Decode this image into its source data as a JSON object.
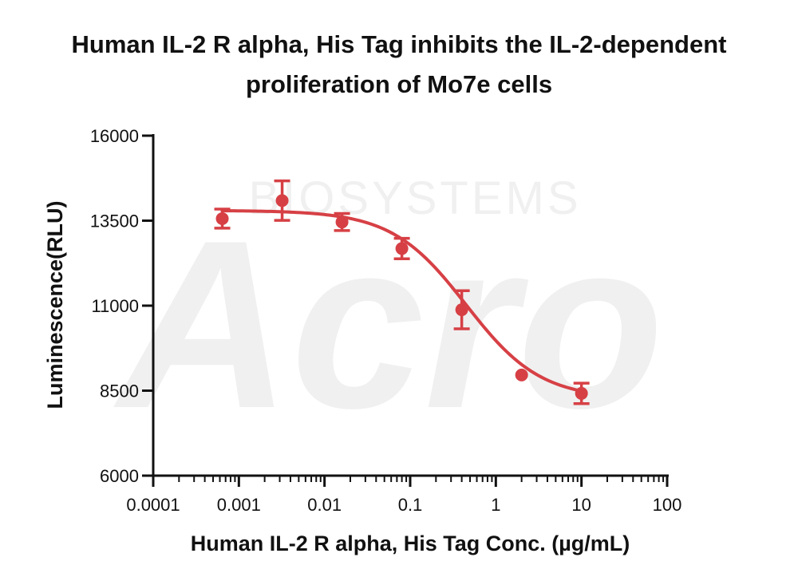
{
  "chart_data": {
    "type": "scatter",
    "title_line1": "Human IL-2 R alpha, His Tag inhibits the IL-2-dependent",
    "title_line2": "proliferation of Mo7e cells",
    "xlabel": "Human IL-2 R alpha, His Tag Conc. (µg/mL)",
    "ylabel": "Luminescence(RLU)",
    "xscale": "log",
    "xlim": [
      0.0001,
      100
    ],
    "ylim": [
      6000,
      16000
    ],
    "xticks": [
      {
        "value": 0.0001,
        "label": "0.0001"
      },
      {
        "value": 0.001,
        "label": "0.001"
      },
      {
        "value": 0.01,
        "label": "0.01"
      },
      {
        "value": 0.1,
        "label": "0.1"
      },
      {
        "value": 1,
        "label": "1"
      },
      {
        "value": 10,
        "label": "10"
      },
      {
        "value": 100,
        "label": "100"
      }
    ],
    "yticks": [
      {
        "value": 6000,
        "label": "6000"
      },
      {
        "value": 8500,
        "label": "8500"
      },
      {
        "value": 11000,
        "label": "11000"
      },
      {
        "value": 13500,
        "label": "13500"
      },
      {
        "value": 16000,
        "label": "16000"
      }
    ],
    "series": [
      {
        "color": "#d64045",
        "points": [
          {
            "x": 0.00064,
            "y": 13560,
            "err": 280
          },
          {
            "x": 0.0032,
            "y": 14090,
            "err": 580
          },
          {
            "x": 0.016,
            "y": 13460,
            "err": 250
          },
          {
            "x": 0.08,
            "y": 12680,
            "err": 300
          },
          {
            "x": 0.4,
            "y": 10880,
            "err": 560
          },
          {
            "x": 2,
            "y": 8960,
            "err": 0
          },
          {
            "x": 10,
            "y": 8420,
            "err": 300
          }
        ],
        "fit": {
          "model": "4PL",
          "top": 13800,
          "bottom": 8250,
          "ec50": 0.45,
          "hill": 1.0
        }
      }
    ],
    "grid": false,
    "legend": "none"
  },
  "watermark": {
    "text": "Acro",
    "subtext": "BIOSYSTEMS"
  }
}
